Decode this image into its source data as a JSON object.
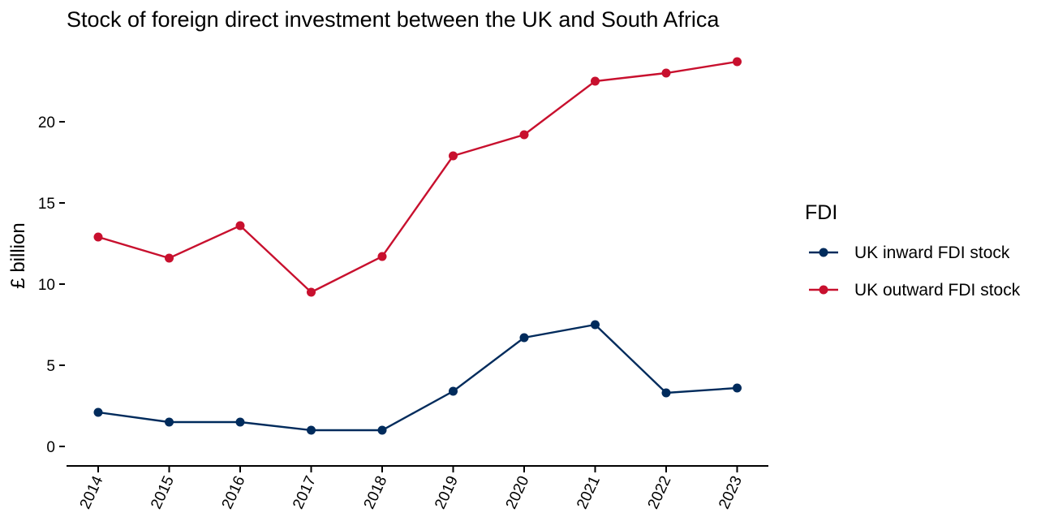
{
  "chart_data": {
    "type": "line",
    "title": "Stock of foreign direct investment between the UK and South Africa",
    "xlabel": "",
    "ylabel": "£ billion",
    "categories": [
      "2014",
      "2015",
      "2016",
      "2017",
      "2018",
      "2019",
      "2020",
      "2021",
      "2022",
      "2023"
    ],
    "yticks": [
      0,
      5,
      10,
      15,
      20
    ],
    "ylim": [
      -1.2,
      24
    ],
    "grid": false,
    "legend": {
      "title": "FDI",
      "placement": "right"
    },
    "series": [
      {
        "name": "UK inward FDI stock",
        "color": "#002b5c",
        "values": [
          2.1,
          1.5,
          1.5,
          1.0,
          1.0,
          3.4,
          6.7,
          7.5,
          3.3,
          3.6
        ]
      },
      {
        "name": "UK outward FDI stock",
        "color": "#c8102e",
        "values": [
          12.9,
          11.6,
          13.6,
          9.5,
          11.7,
          17.9,
          19.2,
          22.5,
          23.0,
          23.7
        ]
      }
    ]
  }
}
